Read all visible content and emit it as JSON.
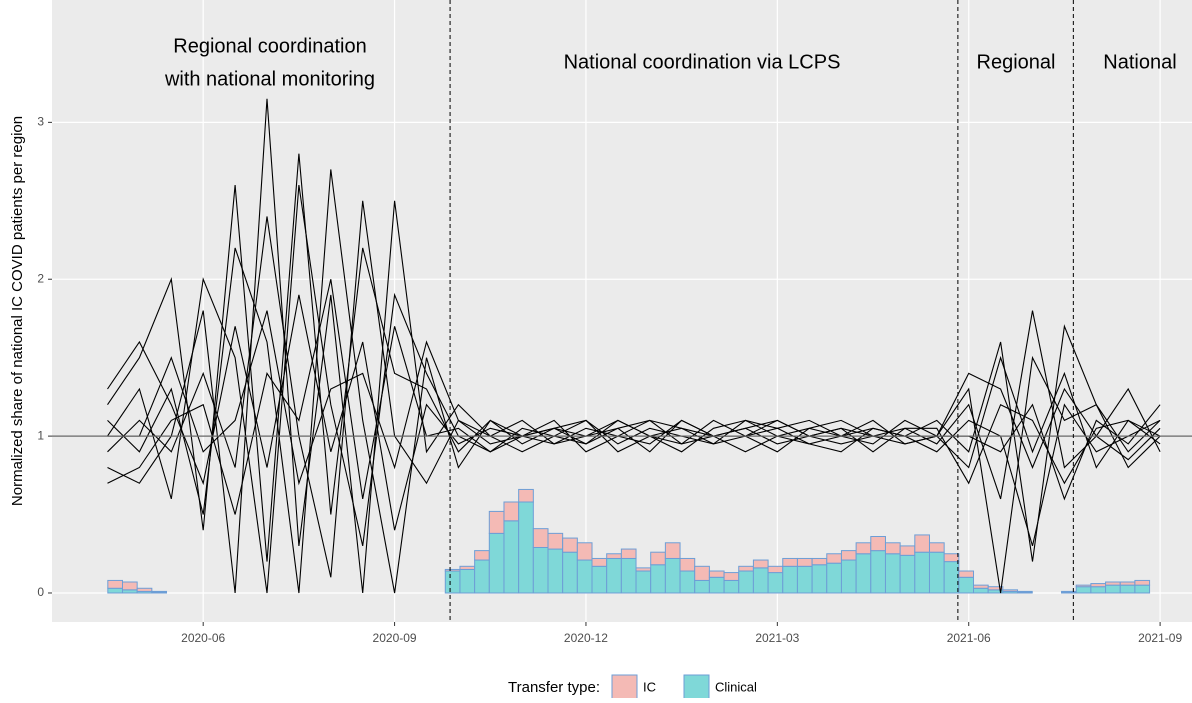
{
  "chart_data": {
    "type": "line",
    "y_label": "Normalized share of national IC COVID patients per region",
    "xlim": [
      3.63,
      21.5
    ],
    "ylim": [
      -0.185,
      3.78
    ],
    "xticks": [
      {
        "value": 6,
        "label": "2020-06"
      },
      {
        "value": 9,
        "label": "2020-09"
      },
      {
        "value": 12,
        "label": "2020-12"
      },
      {
        "value": 15,
        "label": "2021-03"
      },
      {
        "value": 18,
        "label": "2021-06"
      },
      {
        "value": 21,
        "label": "2021-09"
      }
    ],
    "yticks": [
      0,
      1,
      2,
      3
    ],
    "grid": true,
    "reference_line": 1,
    "phase_boundaries": [
      9.87,
      17.83,
      19.64
    ],
    "annotations": [
      "Regional coordination",
      "with national monitoring",
      "National coordination via LCPS",
      "Regional",
      "National"
    ],
    "x": [
      4.5,
      5,
      5.5,
      6,
      6.5,
      7,
      7.5,
      8,
      8.5,
      9,
      9.5,
      10,
      10.5,
      11,
      11.5,
      12,
      12.5,
      13,
      13.5,
      14,
      14.5,
      15,
      15.5,
      16,
      16.5,
      17,
      17.5,
      18,
      18.5,
      19,
      19.5,
      20,
      20.5,
      21
    ],
    "series": [
      {
        "color": "#000000",
        "values": [
          1.2,
          1.5,
          2.0,
          0.4,
          2.6,
          0.2,
          2.8,
          0.5,
          2.2,
          1.4,
          1.3,
          0.9,
          1.1,
          1.0,
          1.05,
          0.95,
          1.1,
          1.0,
          0.9,
          1.05,
          1.1,
          1.0,
          0.95,
          1.0,
          1.05,
          1.0,
          1.1,
          0.9,
          1.6,
          0.2,
          1.7,
          1.2,
          0.9,
          1.1
        ]
      },
      {
        "color": "#000000",
        "values": [
          0.8,
          0.7,
          1.0,
          1.8,
          0.0,
          3.15,
          0.3,
          1.9,
          0.0,
          2.5,
          0.9,
          1.2,
          1.0,
          1.1,
          0.95,
          1.0,
          1.05,
          0.9,
          1.1,
          1.0,
          1.05,
          1.1,
          1.0,
          0.95,
          1.0,
          1.05,
          0.95,
          1.2,
          0.6,
          1.8,
          0.8,
          1.0,
          1.3,
          0.9
        ]
      },
      {
        "color": "#000000",
        "values": [
          1.0,
          1.3,
          0.6,
          2.0,
          1.5,
          0.0,
          2.6,
          1.2,
          0.3,
          1.9,
          1.4,
          1.0,
          0.9,
          1.05,
          1.0,
          1.1,
          0.95,
          1.05,
          1.0,
          0.95,
          1.0,
          1.05,
          1.1,
          1.0,
          0.95,
          1.1,
          1.0,
          0.8,
          1.5,
          0.9,
          1.4,
          0.8,
          1.1,
          1.0
        ]
      },
      {
        "color": "#000000",
        "values": [
          1.1,
          0.9,
          1.3,
          0.5,
          2.2,
          1.6,
          0.0,
          2.7,
          1.1,
          0.0,
          1.5,
          0.8,
          1.1,
          0.95,
          1.05,
          1.0,
          1.1,
          1.0,
          0.95,
          1.1,
          1.0,
          0.9,
          1.05,
          1.0,
          1.1,
          0.95,
          1.0,
          1.3,
          0.0,
          1.5,
          1.1,
          1.2,
          0.8,
          1.0
        ]
      },
      {
        "color": "#000000",
        "values": [
          0.9,
          1.1,
          0.9,
          1.4,
          0.8,
          2.4,
          1.0,
          0.1,
          2.5,
          1.0,
          0.7,
          1.1,
          0.95,
          1.0,
          1.1,
          0.9,
          1.0,
          1.1,
          1.05,
          1.0,
          0.9,
          1.0,
          1.05,
          1.1,
          1.0,
          1.0,
          0.9,
          1.1,
          1.0,
          0.3,
          1.2,
          0.9,
          1.0,
          1.1
        ]
      },
      {
        "color": "#000000",
        "values": [
          1.3,
          1.6,
          1.2,
          0.7,
          1.7,
          0.8,
          1.9,
          0.9,
          1.6,
          0.4,
          1.2,
          0.95,
          1.05,
          1.0,
          0.95,
          1.05,
          1.0,
          0.95,
          1.1,
          1.0,
          1.05,
          0.95,
          1.0,
          1.05,
          0.9,
          1.05,
          1.05,
          0.7,
          1.2,
          1.1,
          0.7,
          1.05,
          1.1,
          0.95
        ]
      },
      {
        "color": "#000000",
        "values": [
          0.7,
          0.8,
          1.1,
          1.2,
          0.5,
          1.4,
          1.1,
          2.0,
          0.6,
          1.7,
          1.0,
          1.05,
          0.9,
          1.0,
          1.05,
          1.1,
          0.9,
          1.0,
          1.05,
          0.95,
          1.1,
          1.05,
          0.95,
          0.9,
          1.05,
          1.0,
          1.0,
          1.0,
          0.9,
          1.2,
          0.6,
          1.1,
          0.95,
          1.2
        ]
      },
      {
        "color": "#000000",
        "values": [
          1.0,
          1.0,
          1.5,
          0.9,
          1.1,
          1.8,
          0.7,
          1.3,
          1.4,
          0.8,
          1.6,
          1.1,
          1.0,
          0.9,
          1.0,
          0.95,
          1.05,
          1.1,
          0.95,
          1.0,
          1.0,
          1.1,
          1.0,
          1.05,
          1.0,
          0.95,
          1.0,
          1.4,
          1.3,
          0.8,
          1.3,
          1.0,
          0.85,
          1.05
        ]
      }
    ],
    "bars": {
      "type": "bar",
      "legend_title": "Transfer type:",
      "border_color": "#6d9ed6",
      "x": [
        4.62,
        4.85,
        5.08,
        5.31,
        5.54,
        5.77,
        6.0,
        6.23,
        6.46,
        6.69,
        6.92,
        7.15,
        7.38,
        7.61,
        7.84,
        8.07,
        8.3,
        8.53,
        8.76,
        8.99,
        9.22,
        9.45,
        9.68,
        9.91,
        10.14,
        10.37,
        10.6,
        10.83,
        11.06,
        11.29,
        11.52,
        11.75,
        11.98,
        12.21,
        12.44,
        12.67,
        12.9,
        13.13,
        13.36,
        13.59,
        13.82,
        14.05,
        14.28,
        14.51,
        14.74,
        14.97,
        15.2,
        15.43,
        15.66,
        15.89,
        16.12,
        16.35,
        16.58,
        16.81,
        17.04,
        17.27,
        17.5,
        17.73,
        17.96,
        18.19,
        18.42,
        18.65,
        18.88,
        19.11,
        19.34,
        19.57,
        19.8,
        20.03,
        20.26,
        20.49,
        20.72
      ],
      "series": [
        {
          "name": "Clinical",
          "color": "#7fd8d8",
          "values": [
            0.03,
            0.02,
            0.01,
            0.005,
            0,
            0,
            0,
            0,
            0,
            0,
            0,
            0,
            0,
            0,
            0,
            0,
            0,
            0,
            0,
            0,
            0,
            0,
            0,
            0.14,
            0.15,
            0.21,
            0.38,
            0.46,
            0.58,
            0.29,
            0.28,
            0.26,
            0.21,
            0.17,
            0.22,
            0.22,
            0.14,
            0.18,
            0.22,
            0.14,
            0.08,
            0.1,
            0.08,
            0.14,
            0.16,
            0.13,
            0.17,
            0.17,
            0.18,
            0.19,
            0.21,
            0.25,
            0.27,
            0.25,
            0.24,
            0.26,
            0.26,
            0.2,
            0.1,
            0.03,
            0.02,
            0.01,
            0.005,
            0,
            0,
            0.005,
            0.04,
            0.04,
            0.05,
            0.05,
            0.05
          ]
        },
        {
          "name": "IC",
          "color": "#f4bab5",
          "values": [
            0.05,
            0.05,
            0.02,
            0.005,
            0,
            0,
            0,
            0,
            0,
            0,
            0,
            0,
            0,
            0,
            0,
            0,
            0,
            0,
            0,
            0,
            0,
            0,
            0,
            0.01,
            0.02,
            0.06,
            0.14,
            0.12,
            0.08,
            0.12,
            0.1,
            0.09,
            0.11,
            0.05,
            0.03,
            0.06,
            0.02,
            0.08,
            0.1,
            0.08,
            0.09,
            0.04,
            0.05,
            0.03,
            0.05,
            0.04,
            0.05,
            0.05,
            0.04,
            0.06,
            0.06,
            0.07,
            0.09,
            0.07,
            0.06,
            0.11,
            0.06,
            0.05,
            0.04,
            0.02,
            0.02,
            0.01,
            0.005,
            0,
            0,
            0.005,
            0.01,
            0.02,
            0.02,
            0.02,
            0.03
          ]
        }
      ]
    }
  }
}
